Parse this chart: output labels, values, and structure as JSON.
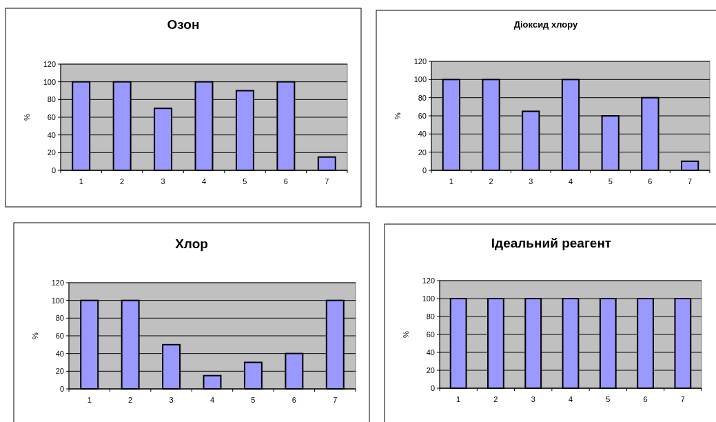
{
  "chart_data": [
    {
      "type": "bar",
      "title": "Озон",
      "ylabel": "%",
      "categories": [
        "1",
        "2",
        "3",
        "4",
        "5",
        "6",
        "7"
      ],
      "values": [
        100,
        100,
        70,
        100,
        90,
        100,
        15
      ],
      "color": "#9999ff",
      "ylim": [
        0,
        120
      ],
      "yticks": [
        0,
        20,
        40,
        60,
        80,
        100,
        120
      ],
      "grid": "y"
    },
    {
      "type": "bar",
      "title": "Діоксид хлору",
      "ylabel": "%",
      "categories": [
        "1",
        "2",
        "3",
        "4",
        "5",
        "6",
        "7"
      ],
      "values": [
        100,
        100,
        65,
        100,
        60,
        80,
        10
      ],
      "color": "#9999ff",
      "ylim": [
        0,
        120
      ],
      "yticks": [
        0,
        20,
        40,
        60,
        80,
        100,
        120
      ],
      "grid": "y"
    },
    {
      "type": "bar",
      "title": "Хлор",
      "ylabel": "%",
      "categories": [
        "1",
        "2",
        "3",
        "4",
        "5",
        "6",
        "7"
      ],
      "values": [
        100,
        100,
        50,
        15,
        30,
        40,
        100
      ],
      "color": "#9999ff",
      "ylim": [
        0,
        120
      ],
      "yticks": [
        0,
        20,
        40,
        60,
        80,
        100,
        120
      ],
      "grid": "y"
    },
    {
      "type": "bar",
      "title": "Ідеальний реагент",
      "ylabel": "%",
      "categories": [
        "1",
        "2",
        "3",
        "4",
        "5",
        "6",
        "7"
      ],
      "values": [
        100,
        100,
        100,
        100,
        100,
        100,
        100
      ],
      "color": "#9999ff",
      "ylim": [
        0,
        120
      ],
      "yticks": [
        0,
        20,
        40,
        60,
        80,
        100,
        120
      ],
      "grid": "y"
    }
  ]
}
